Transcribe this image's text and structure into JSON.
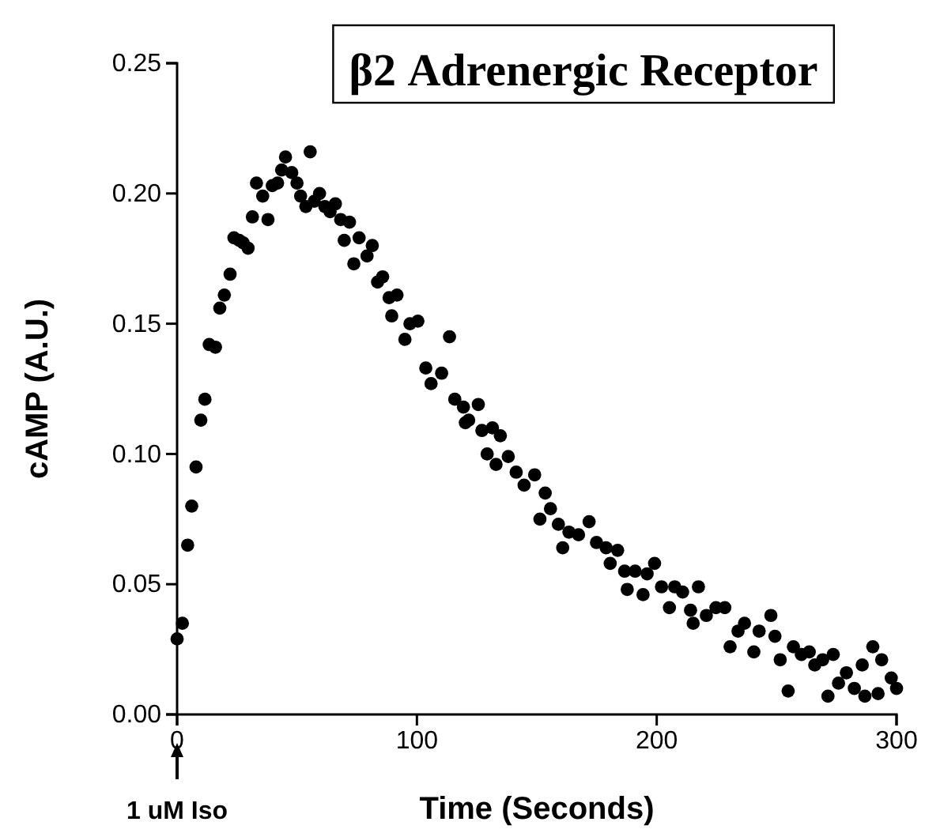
{
  "chart_data": {
    "type": "scatter",
    "title": "β2 Adrenergic Receptor",
    "xlabel": "Time (Seconds)",
    "ylabel": "cAMP (A.U.)",
    "annotations": [
      "1 uM Iso"
    ],
    "xlim": [
      0,
      300
    ],
    "xticks": [
      0,
      100,
      200,
      300
    ],
    "ylim": [
      0,
      0.25
    ],
    "yticks": [
      {
        "value": 0,
        "label": "0.00"
      },
      {
        "value": 0.05,
        "label": "0.05"
      },
      {
        "value": 0.1,
        "label": "0.10"
      },
      {
        "value": 0.15,
        "label": "0.15"
      },
      {
        "value": 0.2,
        "label": "0.20"
      },
      {
        "value": 0.25,
        "label": "0.25"
      }
    ],
    "grid": false,
    "marker": "circle",
    "series": [
      {
        "color": "#000000",
        "x": [
          0,
          2.2,
          4.4,
          6.1,
          7.9,
          9.9,
          11.6,
          13.4,
          16,
          17.8,
          19.7,
          22.1,
          23.7,
          25.9,
          27.6,
          29.6,
          31.4,
          33.1,
          35.7,
          37.9,
          39.7,
          41.9,
          43.6,
          45.2,
          47.8,
          50,
          51.5,
          53.7,
          55.5,
          57.2,
          59.4,
          61.6,
          63.8,
          66,
          68.2,
          69.7,
          71.9,
          73.7,
          75.9,
          79.2,
          81.4,
          83.6,
          85.7,
          88.4,
          89.5,
          91.7,
          95,
          97.1,
          100.4,
          103.7,
          105.9,
          110.3,
          113.6,
          115.8,
          119.4,
          120.2,
          121.6,
          125.6,
          127.1,
          129.3,
          131.5,
          133,
          134.8,
          138.1,
          141.4,
          144.7,
          149.1,
          151.3,
          153.5,
          155.7,
          159,
          160.8,
          163.4,
          167.4,
          171.8,
          174.9,
          178.9,
          180.6,
          183.7,
          186.6,
          187.7,
          191,
          194.3,
          196,
          199.1,
          202,
          205.3,
          207.5,
          210.8,
          214.1,
          215.2,
          217.4,
          220.7,
          224.7,
          228.4,
          230.6,
          233.9,
          236.6,
          240.5,
          242.7,
          247.6,
          249.3,
          251.5,
          254.8,
          257,
          260.3,
          263.6,
          265.9,
          269.2,
          271.4,
          273.6,
          275.8,
          279.1,
          282.4,
          285.7,
          286.8,
          290.1,
          292.3,
          293.8,
          297.8,
          300
        ],
        "values": [
          0.029,
          0.035,
          0.065,
          0.08,
          0.095,
          0.113,
          0.121,
          0.142,
          0.141,
          0.156,
          0.161,
          0.169,
          0.183,
          0.182,
          0.181,
          0.179,
          0.191,
          0.204,
          0.199,
          0.19,
          0.203,
          0.204,
          0.209,
          0.214,
          0.208,
          0.204,
          0.199,
          0.195,
          0.216,
          0.197,
          0.2,
          0.195,
          0.193,
          0.196,
          0.19,
          0.182,
          0.189,
          0.173,
          0.183,
          0.176,
          0.18,
          0.166,
          0.168,
          0.16,
          0.153,
          0.161,
          0.144,
          0.15,
          0.151,
          0.133,
          0.127,
          0.131,
          0.145,
          0.121,
          0.118,
          0.112,
          0.113,
          0.119,
          0.109,
          0.1,
          0.11,
          0.096,
          0.107,
          0.099,
          0.093,
          0.088,
          0.092,
          0.075,
          0.085,
          0.079,
          0.073,
          0.064,
          0.07,
          0.069,
          0.074,
          0.066,
          0.064,
          0.058,
          0.063,
          0.055,
          0.048,
          0.055,
          0.046,
          0.054,
          0.058,
          0.049,
          0.041,
          0.049,
          0.047,
          0.04,
          0.035,
          0.049,
          0.038,
          0.041,
          0.041,
          0.026,
          0.032,
          0.035,
          0.024,
          0.032,
          0.038,
          0.03,
          0.021,
          0.009,
          0.026,
          0.023,
          0.024,
          0.019,
          0.021,
          0.007,
          0.023,
          0.012,
          0.016,
          0.01,
          0.019,
          0.007,
          0.026,
          0.008,
          0.021,
          0.014,
          0.01
        ]
      }
    ]
  }
}
